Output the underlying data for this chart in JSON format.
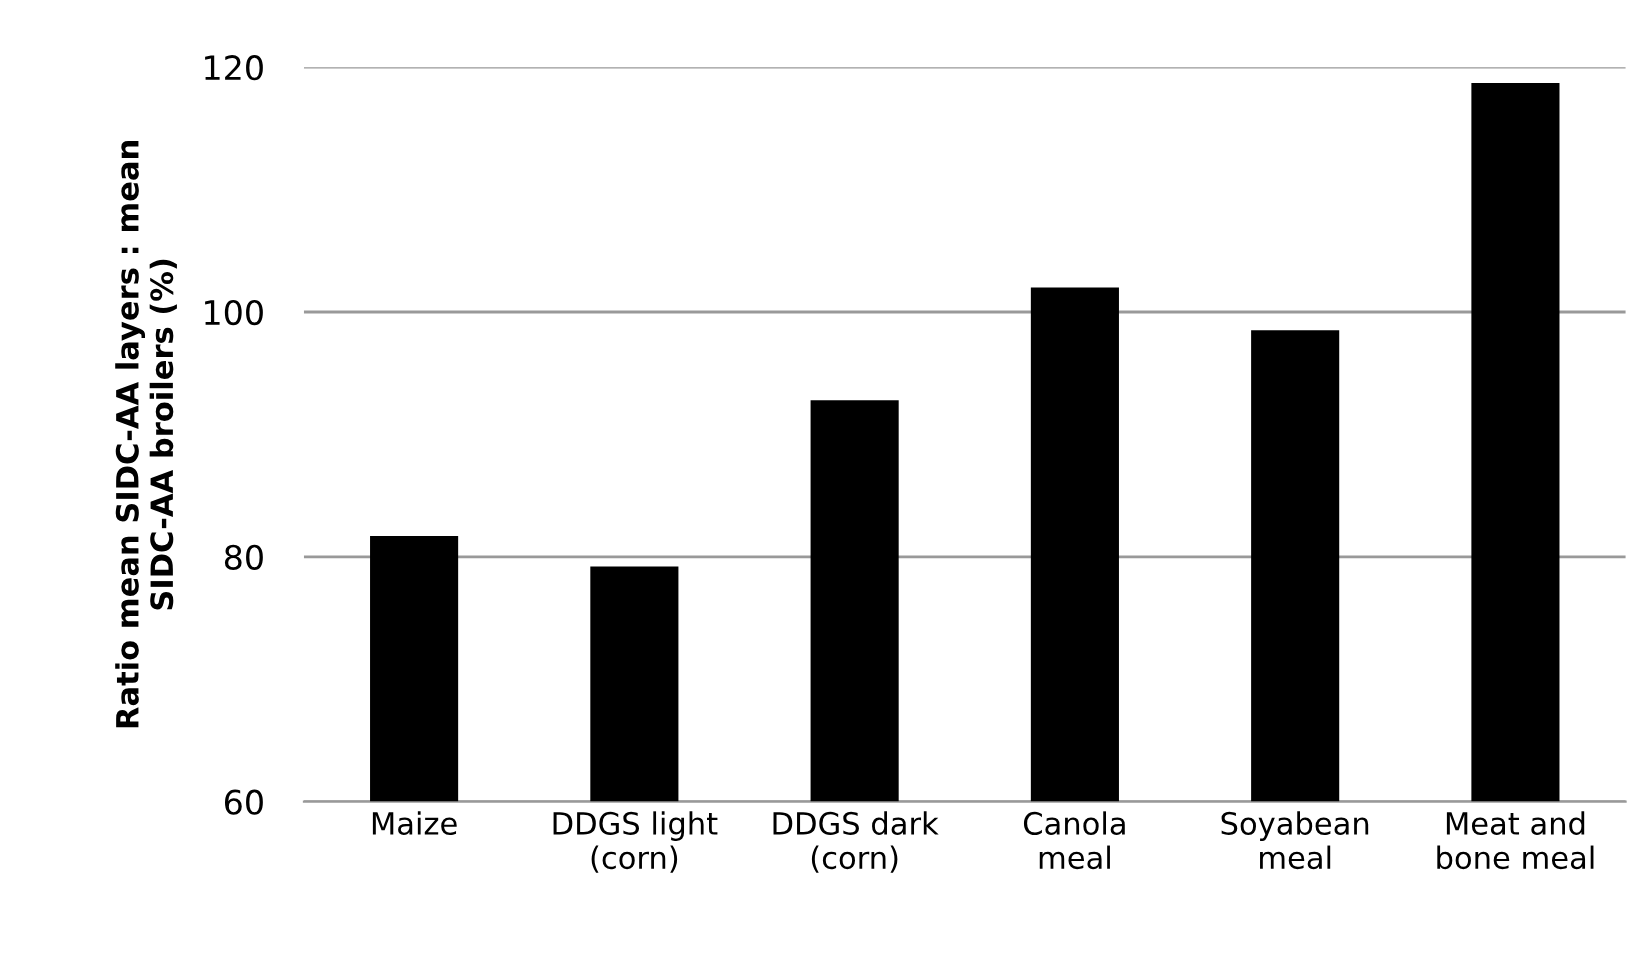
{
  "chart_data": {
    "type": "bar",
    "ylabel": "Ratio mean SIDC-AA layers : mean\nSIDC-AA broilers (%)",
    "categories": [
      "Maize",
      "DDGS light\n(corn)",
      "DDGS dark\n(corn)",
      "Canola\nmeal",
      "Soyabean\nmeal",
      "Meat and\nbone meal"
    ],
    "values": [
      81.7,
      79.2,
      92.8,
      102.0,
      98.5,
      118.7
    ],
    "color": "#000000",
    "ylim": [
      60,
      120
    ],
    "yticks": [
      60,
      80,
      100,
      120
    ],
    "grid": "y"
  }
}
